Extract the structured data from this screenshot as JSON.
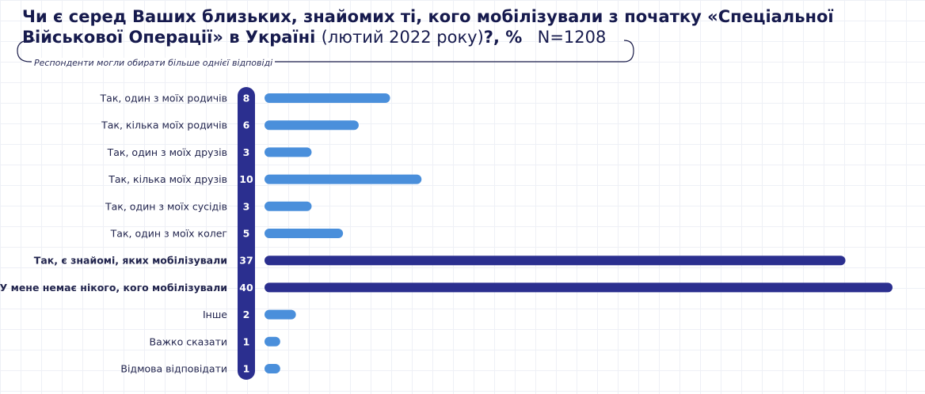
{
  "title": {
    "line1": "Чи є серед Ваших близьких, знайомих ті, кого мобілізували з початку «Спеціальної",
    "line2_bold": "Військової Операції» в Україні",
    "line2_light": "(лютий 2022 року)",
    "line2_suffix": "?, %",
    "n": "N=1208"
  },
  "subtitle": "Респонденти могли обирати більше однієї відповіді",
  "colors": {
    "bar": "#4a8fdb",
    "bar_highlight": "#2b2f8f",
    "value_pill": "#2b2f8f",
    "text": "#1a1c4a"
  },
  "chart_data": {
    "type": "bar",
    "orientation": "horizontal",
    "categories": [
      "Так, один з моїх родичів",
      "Так, кілька моїх родичів",
      "Так, один з моїх друзів",
      "Так, кілька моїх друзів",
      "Так, один з моїх сусідів",
      "Так, один з моїх колег",
      "Так, є знайомі, яких мобілізували",
      "У мене немає нікого, кого мобілізували",
      "Інше",
      "Важко сказати",
      "Відмова відповідати"
    ],
    "values": [
      8,
      6,
      3,
      10,
      3,
      5,
      37,
      40,
      2,
      1,
      1
    ],
    "highlighted": [
      false,
      false,
      false,
      false,
      false,
      false,
      true,
      true,
      false,
      false,
      false
    ],
    "xlim": [
      0,
      40
    ],
    "unit": "%"
  }
}
